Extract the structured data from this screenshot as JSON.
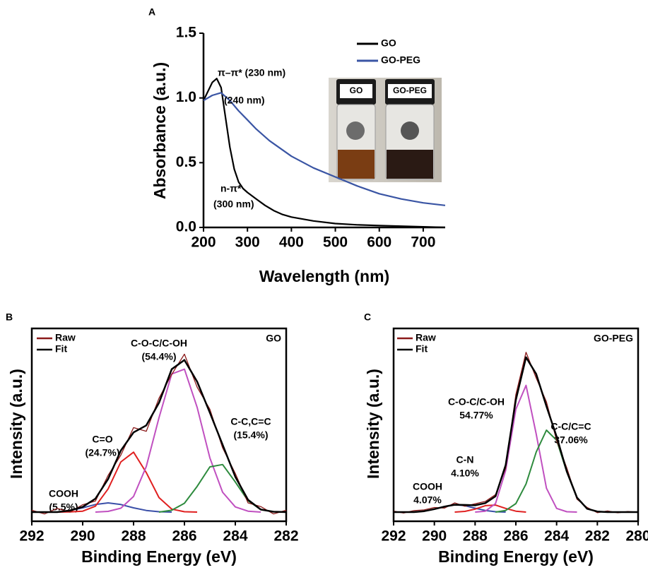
{
  "chart_data": [
    {
      "type": "line",
      "panel": "A",
      "xlabel": "Wavelength (nm)",
      "ylabel": "Absorbance (a.u.)",
      "xlim": [
        200,
        750
      ],
      "ylim": [
        0,
        1.5
      ],
      "xticks": [
        200,
        300,
        400,
        500,
        600,
        700
      ],
      "yticks": [
        {
          "value": 0,
          "label": "0.0"
        },
        0.5,
        {
          "value": 1,
          "label": "1.0"
        },
        1.5
      ],
      "legend": "upper right",
      "series": [
        {
          "name": "GO",
          "color": "#000000",
          "x": [
            200,
            210,
            220,
            230,
            240,
            250,
            260,
            270,
            280,
            290,
            300,
            320,
            340,
            360,
            380,
            400,
            450,
            500,
            550,
            600,
            650,
            700,
            750
          ],
          "values": [
            0.98,
            1.05,
            1.12,
            1.15,
            1.08,
            0.85,
            0.62,
            0.45,
            0.35,
            0.3,
            0.27,
            0.22,
            0.17,
            0.13,
            0.1,
            0.08,
            0.05,
            0.03,
            0.02,
            0.015,
            0.01,
            0.005,
            0.0
          ]
        },
        {
          "name": "GO-PEG",
          "color": "#3a55a4",
          "x": [
            200,
            220,
            240,
            260,
            280,
            300,
            320,
            350,
            400,
            450,
            500,
            550,
            600,
            650,
            700,
            750
          ],
          "values": [
            0.98,
            1.02,
            1.04,
            0.98,
            0.9,
            0.83,
            0.76,
            0.67,
            0.55,
            0.46,
            0.39,
            0.32,
            0.26,
            0.22,
            0.19,
            0.17
          ]
        }
      ],
      "annotations": [
        {
          "text": "π–π* (230 nm)",
          "color": "#000000"
        },
        {
          "text": "(240 nm)",
          "color": "#3a55a4"
        },
        {
          "text": "n-π*",
          "color": "#000000"
        },
        {
          "text": "(300 nm)",
          "color": "#000000"
        }
      ],
      "inset_labels": [
        "GO",
        "GO-PEG"
      ]
    },
    {
      "type": "line",
      "panel": "B",
      "xlabel": "Binding Energy (eV)",
      "ylabel": "Intensity (a.u.)",
      "tag": "GO",
      "tag_color": "#000000",
      "xlim": [
        292,
        282
      ],
      "ylim": [
        -5,
        100
      ],
      "xticks": [
        292,
        290,
        288,
        286,
        284,
        282
      ],
      "legend": "upper left",
      "series": [
        {
          "name": "Raw",
          "color": "#8b1a1a",
          "x": [
            292,
            291.5,
            291,
            290.5,
            290,
            289.5,
            289,
            288.5,
            288,
            287.5,
            287,
            286.5,
            286,
            285.5,
            285,
            284.5,
            284,
            283.5,
            283,
            282.5,
            282
          ],
          "values": [
            1,
            -1,
            2,
            0,
            4,
            6,
            20,
            31,
            46,
            44,
            62,
            75,
            86,
            68,
            56,
            35,
            21,
            5,
            3,
            -1,
            1
          ]
        },
        {
          "name": "Fit",
          "color": "#000000",
          "x": [
            292,
            291.5,
            291,
            290.5,
            290,
            289.5,
            289,
            288.5,
            288,
            287.5,
            287,
            286.5,
            286,
            285.5,
            285,
            284.5,
            284,
            283.5,
            283,
            282.5,
            282
          ],
          "values": [
            0,
            0,
            0,
            0.9,
            2.8,
            7.3,
            18.0,
            33.5,
            43.4,
            47.2,
            59.5,
            77.8,
            82.8,
            71.0,
            54.1,
            36.7,
            19.2,
            6.7,
            1.4,
            0.2,
            0
          ]
        }
      ],
      "components": [
        {
          "label": "COOH",
          "share": "(5.5%)",
          "color": "#3a4fa8",
          "x": [
            291,
            290.5,
            290,
            289.5,
            289,
            288.5,
            288,
            287.5,
            287,
            286.5
          ],
          "values": [
            0,
            0.9,
            2.3,
            4.1,
            5,
            4.1,
            2.3,
            0.9,
            0.2,
            0
          ]
        },
        {
          "label": "C=O",
          "share": "(24.7%)",
          "color": "#e02020",
          "x": [
            291,
            290.5,
            290,
            289.5,
            289,
            288.5,
            288,
            287.5,
            287,
            286.5,
            286,
            285.5
          ],
          "values": [
            0,
            0.1,
            0.5,
            3.2,
            12.6,
            27.3,
            32.6,
            21.5,
            7.9,
            1.6,
            0.2,
            0
          ]
        },
        {
          "label": "C-O-C/C-OH",
          "share": "(54.4%)",
          "color": "#c050c0",
          "x": [
            289.5,
            289,
            288.5,
            288,
            287.5,
            287,
            286.5,
            286,
            285.5,
            285,
            284.5,
            284,
            283.5,
            283
          ],
          "values": [
            0,
            0.4,
            2.1,
            8.5,
            24.8,
            51.4,
            75.2,
            77.8,
            57.0,
            29.5,
            10.8,
            2.8,
            0.5,
            0
          ]
        },
        {
          "label": "C-C,C=C",
          "share": "(15.4%)",
          "color": "#2e8b3e",
          "x": [
            287,
            286.5,
            286,
            285.5,
            285,
            284.5,
            284,
            283.5,
            283,
            282.5,
            282
          ],
          "values": [
            0,
            1.0,
            4.8,
            14.0,
            24.6,
            25.9,
            16.4,
            6.2,
            1.4,
            0.2,
            0
          ]
        }
      ]
    },
    {
      "type": "line",
      "panel": "C",
      "xlabel": "Binding Energy (eV)",
      "ylabel": "Intensity (a.u.)",
      "tag": "GO-PEG",
      "tag_color": "#3a4fa8",
      "xlim": [
        292,
        280
      ],
      "ylim": [
        -5,
        100
      ],
      "xticks": [
        292,
        290,
        288,
        286,
        284,
        282,
        280
      ],
      "legend": "upper left",
      "series": [
        {
          "name": "Raw",
          "color": "#8b1a1a",
          "x": [
            292,
            291.5,
            291,
            290.5,
            290,
            289.5,
            289,
            288.5,
            288,
            287.5,
            287,
            286.5,
            286,
            285.5,
            285,
            284.5,
            284,
            283.5,
            283,
            282.5,
            282,
            281.5,
            281,
            280.5,
            280
          ],
          "values": [
            0.5,
            -0.5,
            0.8,
            1.2,
            2.5,
            2.2,
            5.0,
            3.2,
            4.5,
            5.8,
            9.5,
            24,
            64,
            87,
            73,
            60,
            39,
            24,
            7,
            2.5,
            -0.3,
            0.6,
            -0.4,
            0.3,
            0
          ]
        },
        {
          "name": "Fit",
          "color": "#000000",
          "x": [
            292,
            291.5,
            291,
            290.5,
            290,
            289.5,
            289,
            288.5,
            288,
            287.5,
            287,
            286.5,
            286,
            285.5,
            285,
            284.5,
            284,
            283.5,
            283,
            282.5,
            282,
            281.5,
            281,
            280.5,
            280
          ],
          "values": [
            0,
            0,
            0,
            0.5,
            1.6,
            3.0,
            4.0,
            3.9,
            3.7,
            4.9,
            8.6,
            25.6,
            61.1,
            84.3,
            75.2,
            57.6,
            41.1,
            22.1,
            7.9,
            1.8,
            0.3,
            0,
            0,
            0,
            0
          ]
        }
      ],
      "components": [
        {
          "label": "COOH",
          "share": "4.07%",
          "color": "#3a4fa8",
          "x": [
            291,
            290.5,
            290,
            289.5,
            289,
            288.5,
            288,
            287.5,
            287,
            286.5
          ],
          "values": [
            0,
            0.5,
            1.6,
            3.0,
            4.0,
            3.5,
            2.1,
            0.9,
            0.2,
            0
          ]
        },
        {
          "label": "C-N",
          "share": "4.10%",
          "color": "#e02020",
          "x": [
            289,
            288.5,
            288,
            287.5,
            287,
            286.5,
            286,
            285.5
          ],
          "values": [
            0,
            0.4,
            1.6,
            3.5,
            3.8,
            2.0,
            0.5,
            0
          ]
        },
        {
          "label": "C-O-C/C-OH",
          "share": "54.77%",
          "color": "#c050c0",
          "x": [
            288,
            287.5,
            287,
            286.5,
            286,
            285.5,
            285,
            284.5,
            284,
            283.5,
            283
          ],
          "values": [
            0,
            0.5,
            4.6,
            22.7,
            56.0,
            69.0,
            42.5,
            13.0,
            2.0,
            0.2,
            0
          ]
        },
        {
          "label": "C-C/C=C",
          "share": "37.06%",
          "color": "#2e8b3e",
          "x": [
            287,
            286.5,
            286,
            285.5,
            285,
            284.5,
            284,
            283.5,
            283,
            282.5,
            282,
            281.5
          ],
          "values": [
            0,
            0.9,
            4.6,
            15.3,
            32.7,
            44.6,
            39.1,
            21.9,
            7.9,
            1.8,
            0.3,
            0
          ]
        }
      ]
    }
  ]
}
